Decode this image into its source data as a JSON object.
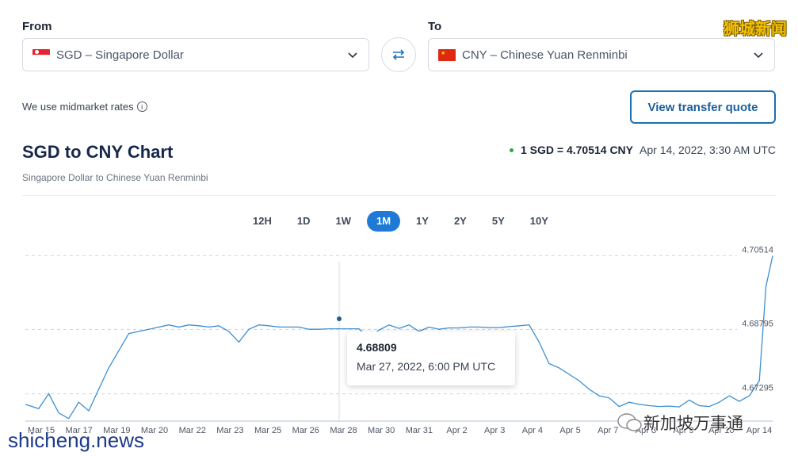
{
  "converter": {
    "from_label": "From",
    "to_label": "To",
    "from_value": "SGD – Singapore Dollar",
    "to_value": "CNY – Chinese Yuan Renminbi",
    "midmarket_note": "We use midmarket rates",
    "quote_button": "View transfer quote"
  },
  "chart_header": {
    "title": "SGD to CNY Chart",
    "subtitle": "Singapore Dollar to Chinese Yuan Renminbi",
    "rate_text": "1 SGD = 4.70514 CNY",
    "rate_time": "Apr 14, 2022, 3:30 AM UTC",
    "live_dot_color": "#2eab3f"
  },
  "ranges": {
    "items": [
      "12H",
      "1D",
      "1W",
      "1M",
      "1Y",
      "2Y",
      "5Y",
      "10Y"
    ],
    "active": "1M"
  },
  "tooltip": {
    "value": "4.68809",
    "time": "Mar 27, 2022, 6:00 PM UTC"
  },
  "watermarks": {
    "top_right": "狮城新闻",
    "bottom_left": "shicheng.news",
    "bottom_right": "新加坡万事通"
  },
  "colors": {
    "accent": "#1f7ad6",
    "line": "#3d8fd1",
    "button_border": "#1c6fb0"
  },
  "chart_data": {
    "type": "line",
    "title": "SGD to CNY Chart",
    "x_tick_labels": [
      "Mar 15",
      "Mar 17",
      "Mar 19",
      "Mar 20",
      "Mar 22",
      "Mar 23",
      "Mar 25",
      "Mar 26",
      "Mar 28",
      "Mar 30",
      "Mar 31",
      "Apr 2",
      "Apr 3",
      "Apr 4",
      "Apr 5",
      "Apr 7",
      "Apr 8",
      "Apr 9",
      "Apr 10",
      "Apr 14"
    ],
    "y_tick_labels": [
      "4.70514",
      "4.68795",
      "4.67295"
    ],
    "ylim": [
      4.6666,
      4.7065
    ],
    "grid": "horizontal dashed",
    "series": [
      {
        "values": [
          [
            0,
            4.6705
          ],
          [
            4,
            4.6695
          ],
          [
            7,
            4.673
          ],
          [
            10,
            4.6685
          ],
          [
            13,
            4.6672
          ],
          [
            16,
            4.671
          ],
          [
            19,
            4.669
          ],
          [
            22,
            4.674
          ],
          [
            25,
            4.679
          ],
          [
            28,
            4.683
          ],
          [
            31,
            4.687
          ],
          [
            34,
            4.6875
          ],
          [
            37,
            4.688
          ],
          [
            40,
            4.6885
          ],
          [
            43,
            4.689
          ],
          [
            46,
            4.6885
          ],
          [
            49,
            4.689
          ],
          [
            52,
            4.6888
          ],
          [
            55,
            4.6885
          ],
          [
            58,
            4.6888
          ],
          [
            61,
            4.6875
          ],
          [
            64,
            4.685
          ],
          [
            67,
            4.688
          ],
          [
            70,
            4.689
          ],
          [
            73,
            4.6888
          ],
          [
            76,
            4.6885
          ],
          [
            79,
            4.6885
          ],
          [
            82,
            4.6885
          ],
          [
            85,
            4.688
          ],
          [
            88,
            4.688
          ],
          [
            91,
            4.6881
          ],
          [
            94,
            4.6881
          ],
          [
            97,
            4.6881
          ],
          [
            100,
            4.6881
          ],
          [
            103,
            4.686
          ],
          [
            106,
            4.6878
          ],
          [
            109,
            4.689
          ],
          [
            112,
            4.6882
          ],
          [
            115,
            4.689
          ],
          [
            118,
            4.6875
          ],
          [
            121,
            4.6885
          ],
          [
            124,
            4.688
          ],
          [
            127,
            4.6883
          ],
          [
            130,
            4.6883
          ],
          [
            133,
            4.6885
          ],
          [
            136,
            4.6885
          ],
          [
            139,
            4.6884
          ],
          [
            142,
            4.6884
          ],
          [
            145,
            4.6886
          ],
          [
            148,
            4.6888
          ],
          [
            151,
            4.689
          ],
          [
            154,
            4.685
          ],
          [
            157,
            4.68
          ],
          [
            160,
            4.679
          ],
          [
            163,
            4.6775
          ],
          [
            166,
            4.676
          ],
          [
            169,
            4.674
          ],
          [
            172,
            4.6725
          ],
          [
            175,
            4.672
          ],
          [
            178,
            4.67
          ],
          [
            181,
            4.671
          ],
          [
            184,
            4.6705
          ],
          [
            187,
            4.6702
          ],
          [
            190,
            4.67
          ],
          [
            193,
            4.6701
          ],
          [
            196,
            4.6699
          ],
          [
            199,
            4.6715
          ],
          [
            202,
            4.6702
          ],
          [
            205,
            4.67
          ],
          [
            208,
            4.671
          ],
          [
            211,
            4.6725
          ],
          [
            214,
            4.6712
          ],
          [
            217,
            4.6725
          ],
          [
            220,
            4.676
          ],
          [
            222,
            4.698
          ],
          [
            224,
            4.7051
          ]
        ]
      }
    ]
  }
}
